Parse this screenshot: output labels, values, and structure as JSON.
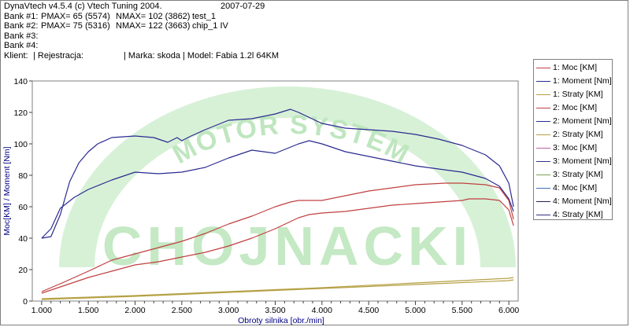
{
  "header": {
    "app_info": "DynaVtech v4.5.4 (c) Vtech Tuning 2004.",
    "date": "2007-07-29",
    "banks": [
      {
        "label": "Bank #1:",
        "pmax": "PMAX= 65 (5574)",
        "nmax": "NMAX= 102 (3862)",
        "name": "test_1"
      },
      {
        "label": "Bank #2:",
        "pmax": "PMAX= 75 (5316)",
        "nmax": "NMAX= 122 (3663)",
        "name": "chip_1 IV"
      },
      {
        "label": "Bank #3:",
        "pmax": "",
        "nmax": "",
        "name": ""
      },
      {
        "label": "Bank #4:",
        "pmax": "",
        "nmax": "",
        "name": ""
      }
    ],
    "client_line": {
      "klient": "Klient:",
      "rejestracja": "| Rejestracja:",
      "marka": "| Marka: skoda | Model: Fabia 1.2l 64KM"
    }
  },
  "watermark": {
    "main": "CHOJNACKI",
    "arc": "MOTOR SYSTEM",
    "color": "#aaddaa"
  },
  "legend": [
    {
      "label": "1: Moc [KM]",
      "color": "#c04040"
    },
    {
      "label": "1: Moment [Nm]",
      "color": "#2a2a90"
    },
    {
      "label": "1: Straty [KM]",
      "color": "#b5a043"
    },
    {
      "label": "2: Moc [KM]",
      "color": "#c04040"
    },
    {
      "label": "2: Moment [Nm]",
      "color": "#2a2a90"
    },
    {
      "label": "2: Straty [KM]",
      "color": "#b5a043"
    },
    {
      "label": "3: Moc [KM]",
      "color": "#c060a0"
    },
    {
      "label": "3: Moment [Nm]",
      "color": "#303090"
    },
    {
      "label": "3: Straty [KM]",
      "color": "#7aa050"
    },
    {
      "label": "4: Moc [KM]",
      "color": "#4070c0"
    },
    {
      "label": "4: Moment [Nm]",
      "color": "#202060"
    },
    {
      "label": "4: Straty [KM]",
      "color": "#303080"
    }
  ],
  "chart_data": {
    "type": "line",
    "xlabel": "Obroty silnika [obr./min]",
    "ylabel": "Moc[KM] / Moment [Nm]",
    "xlim": [
      900,
      6100
    ],
    "ylim": [
      0,
      140
    ],
    "x_ticks": [
      "1.000",
      "1.500",
      "2.000",
      "2.500",
      "3.000",
      "3.500",
      "4.000",
      "4.500",
      "5.000",
      "5.500",
      "6.000"
    ],
    "x_tick_values": [
      1000,
      1500,
      2000,
      2500,
      3000,
      3500,
      4000,
      4500,
      5000,
      5500,
      6000
    ],
    "y_ticks": [
      0,
      20,
      40,
      60,
      80,
      100,
      120,
      140
    ],
    "grid": false,
    "legend_position": "right",
    "series": [
      {
        "name": "1: Moc [KM]",
        "color": "#c04040",
        "x": [
          1000,
          1200,
          1500,
          1750,
          2000,
          2250,
          2500,
          2750,
          3000,
          3250,
          3500,
          3750,
          3862,
          4000,
          4250,
          4500,
          4750,
          5000,
          5250,
          5500,
          5574,
          5750,
          5900,
          6000,
          6050
        ],
        "y": [
          5,
          9,
          15,
          19,
          23,
          25,
          28,
          31,
          35,
          40,
          46,
          53,
          55,
          56,
          57,
          59,
          61,
          62,
          63,
          64,
          65,
          65,
          64,
          58,
          48
        ]
      },
      {
        "name": "1: Moment [Nm]",
        "color": "#2a2a90",
        "x": [
          1000,
          1100,
          1200,
          1350,
          1500,
          1750,
          2000,
          2250,
          2500,
          2750,
          3000,
          3250,
          3500,
          3750,
          3862,
          4000,
          4250,
          4500,
          4750,
          5000,
          5250,
          5500,
          5750,
          5900,
          6000,
          6050
        ],
        "y": [
          40,
          46,
          59,
          66,
          71,
          77,
          82,
          81,
          82,
          85,
          91,
          96,
          94,
          100,
          102,
          100,
          95,
          92,
          89,
          86,
          84,
          82,
          78,
          73,
          65,
          57
        ]
      },
      {
        "name": "1: Straty [KM]",
        "color": "#b5a043",
        "x": [
          1000,
          2000,
          3000,
          4000,
          5000,
          6000,
          6050
        ],
        "y": [
          1,
          3,
          5.5,
          8,
          10.5,
          13,
          13.5
        ]
      },
      {
        "name": "2: Moc [KM]",
        "color": "#c04040",
        "x": [
          1000,
          1200,
          1500,
          1750,
          2000,
          2250,
          2500,
          2750,
          3000,
          3250,
          3500,
          3663,
          3750,
          4000,
          4250,
          4500,
          4750,
          5000,
          5316,
          5500,
          5750,
          5900,
          6000,
          6050
        ],
        "y": [
          6,
          11,
          19,
          26,
          30,
          34,
          38,
          43,
          49,
          54,
          60,
          63,
          64,
          64,
          67,
          70,
          72,
          74,
          75,
          75,
          74,
          72,
          64,
          52
        ]
      },
      {
        "name": "2: Moment [Nm]",
        "color": "#2a2a90",
        "x": [
          1000,
          1100,
          1200,
          1300,
          1400,
          1500,
          1600,
          1750,
          2000,
          2200,
          2350,
          2450,
          2500,
          2600,
          2750,
          3000,
          3250,
          3500,
          3663,
          3750,
          4000,
          4250,
          4500,
          4750,
          5000,
          5250,
          5500,
          5750,
          5900,
          6000,
          6050
        ],
        "y": [
          40,
          41,
          55,
          76,
          88,
          95,
          100,
          104,
          105,
          104,
          101,
          104,
          102,
          105,
          109,
          115,
          116,
          119,
          122,
          120,
          113,
          110,
          109,
          108,
          106,
          103,
          99,
          93,
          86,
          75,
          60
        ]
      },
      {
        "name": "2: Straty [KM]",
        "color": "#b5a043",
        "x": [
          1000,
          2000,
          3000,
          4000,
          5000,
          6000,
          6050
        ],
        "y": [
          1.5,
          3.5,
          6,
          8.5,
          11.5,
          14.5,
          15
        ]
      }
    ]
  }
}
